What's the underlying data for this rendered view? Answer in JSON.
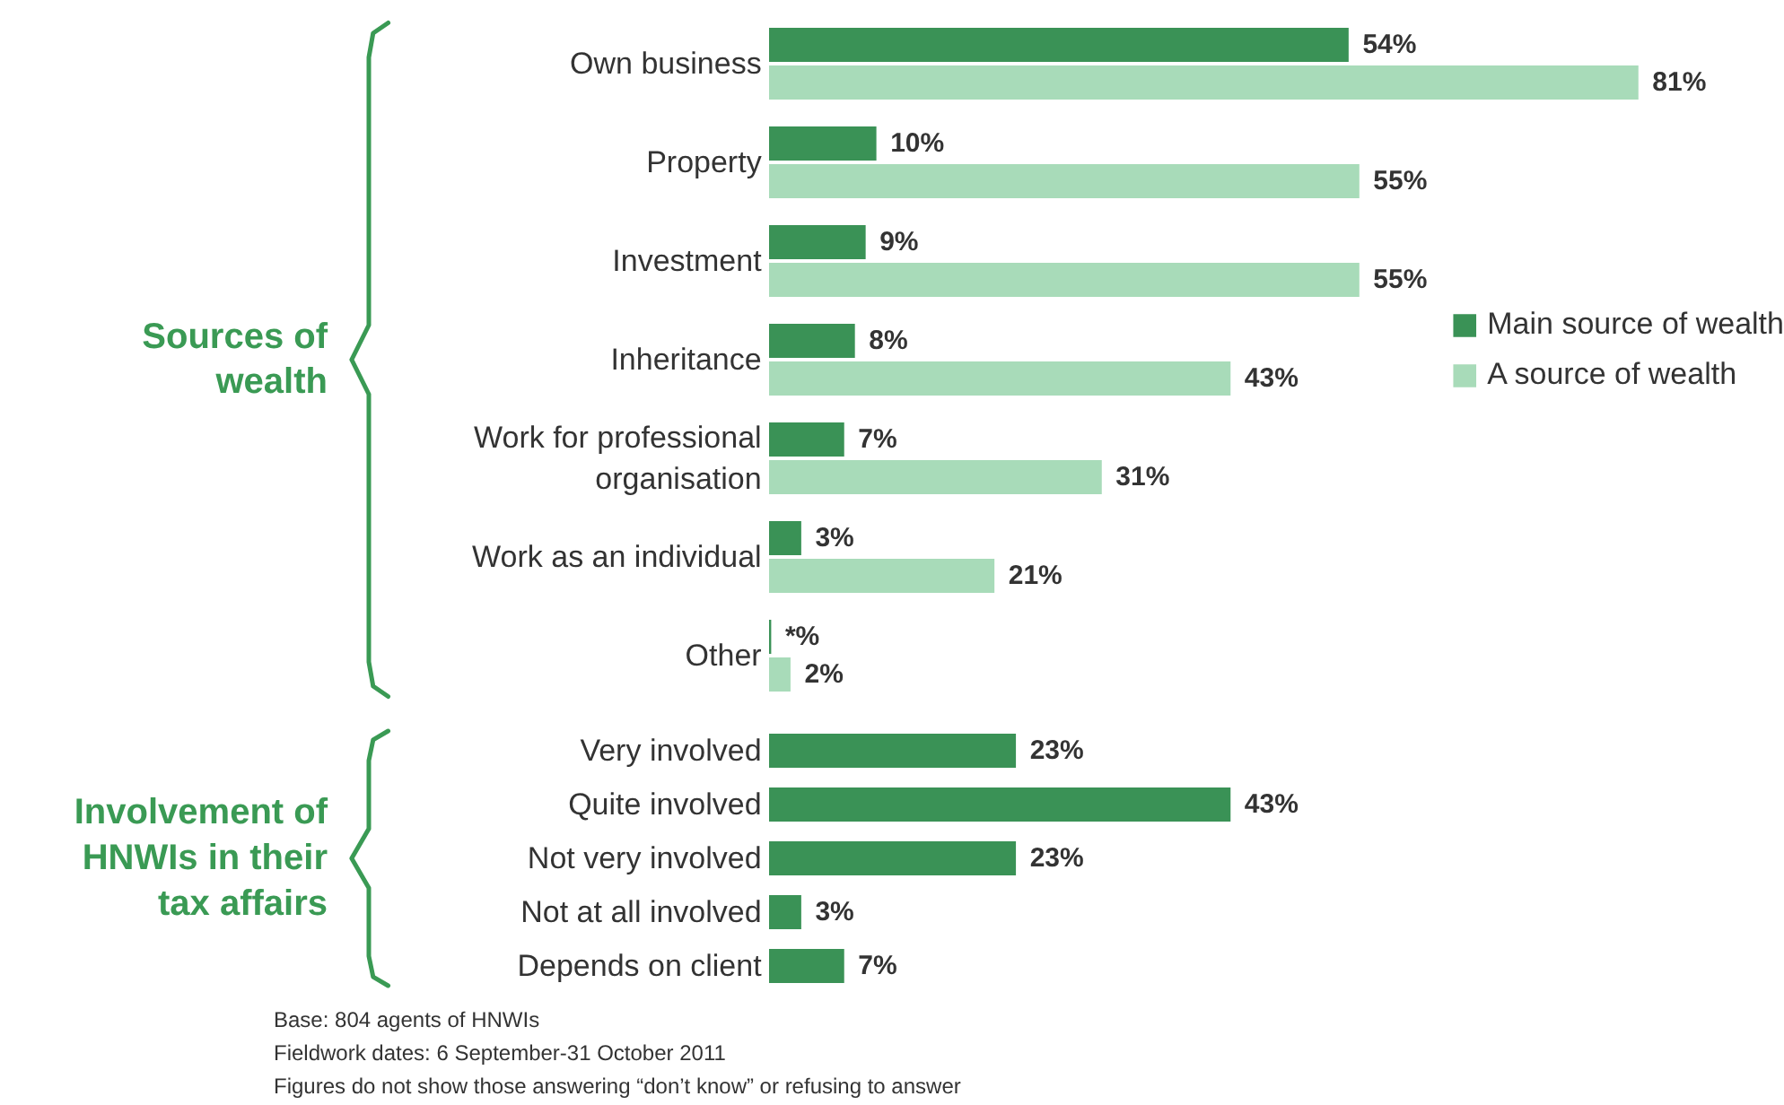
{
  "chart_data": [
    {
      "type": "bar",
      "orientation": "horizontal",
      "ylabel": "Sources of wealth",
      "legend": "right",
      "categories": [
        "Own business",
        "Property",
        "Investment",
        "Inheritance",
        "Work for professional organisation",
        "Work as an individual",
        "Other"
      ],
      "series": [
        {
          "name": "Main source of wealth",
          "color": "#3a9256",
          "values": [
            54,
            10,
            9,
            8,
            7,
            3,
            0.2
          ],
          "value_labels": [
            "54%",
            "10%",
            "9%",
            "8%",
            "7%",
            "3%",
            "*%"
          ]
        },
        {
          "name": "A source of wealth",
          "color": "#a8dbb9",
          "values": [
            81,
            55,
            55,
            43,
            31,
            21,
            2
          ],
          "value_labels": [
            "81%",
            "55%",
            "55%",
            "43%",
            "31%",
            "21%",
            "2%"
          ]
        }
      ]
    },
    {
      "type": "bar",
      "orientation": "horizontal",
      "ylabel": "Involvement of HNWIs in their tax affairs",
      "categories": [
        "Very involved",
        "Quite involved",
        "Not very involved",
        "Not at all involved",
        "Depends on client"
      ],
      "series": [
        {
          "color": "#3a9256",
          "values": [
            23,
            43,
            23,
            3,
            7
          ],
          "value_labels": [
            "23%",
            "43%",
            "23%",
            "3%",
            "7%"
          ]
        }
      ],
      "annotations": [
        "Base: 804 agents of HNWIs",
        "Fieldwork dates: 6 September-31 October 2011",
        "Figures do not show those answering “don’t know” or refusing to answer"
      ]
    }
  ]
}
